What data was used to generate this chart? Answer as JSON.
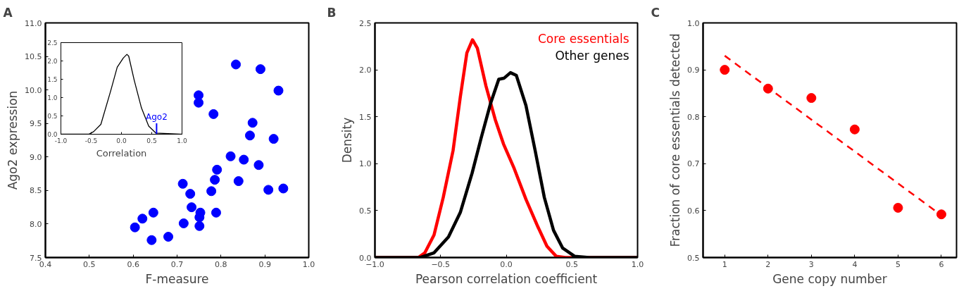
{
  "chart_data": [
    {
      "type": "scatter",
      "title": "A",
      "xlabel": "F-measure",
      "ylabel": "Ago2 expression",
      "marker": "circle",
      "xlim": [
        0.4,
        1.0
      ],
      "xticks": [
        0.4,
        0.5,
        0.6,
        0.7,
        0.8,
        0.9,
        {
          "value": 1.0,
          "label": "1.0"
        }
      ],
      "ylim": [
        7.5,
        11.0
      ],
      "yticks": [
        7.5,
        {
          "value": 8.0,
          "label": "8.0"
        },
        8.5,
        {
          "value": 9.0,
          "label": "9.0"
        },
        9.5,
        {
          "value": 10.0,
          "label": "10.0"
        },
        10.5,
        {
          "value": 11.0,
          "label": "11.0"
        }
      ],
      "x": [
        0.834,
        0.89,
        0.931,
        0.749,
        0.749,
        0.783,
        0.872,
        0.866,
        0.92,
        0.822,
        0.852,
        0.886,
        0.791,
        0.786,
        0.84,
        0.713,
        0.778,
        0.908,
        0.942,
        0.73,
        0.733,
        0.753,
        0.789,
        0.751,
        0.646,
        0.621,
        0.715,
        0.751,
        0.604,
        0.68,
        0.642
      ],
      "series": [
        {
          "color": "#0000ff",
          "values": [
            10.38,
            10.31,
            9.99,
            9.92,
            9.81,
            9.64,
            9.51,
            9.32,
            9.27,
            9.01,
            8.96,
            8.88,
            8.81,
            8.66,
            8.64,
            8.6,
            8.49,
            8.51,
            8.53,
            8.45,
            8.25,
            8.17,
            8.17,
            8.1,
            8.17,
            8.08,
            8.01,
            7.97,
            7.95,
            7.81,
            7.76
          ]
        }
      ]
    },
    {
      "type": "line",
      "xlabel": "Correlation",
      "xlim": [
        -1.0,
        1.0
      ],
      "xticks": [
        {
          "value": -1.0,
          "label": "-1.0"
        },
        -0.5,
        {
          "value": 0.0,
          "label": "0.0"
        },
        0.5,
        {
          "value": 1.0,
          "label": "1.0"
        }
      ],
      "ylim": [
        0.0,
        2.5
      ],
      "yticks": [
        {
          "value": 0.0,
          "label": "0.0"
        },
        0.5,
        {
          "value": 1.0,
          "label": "1.0"
        },
        1.5,
        {
          "value": 2.0,
          "label": "2.0"
        },
        2.5
      ],
      "x": [
        -1.0,
        -0.54,
        -0.46,
        -0.34,
        -0.18,
        -0.07,
        0.03,
        0.09,
        0.12,
        0.21,
        0.33,
        0.45,
        0.57,
        1.0
      ],
      "series": [
        {
          "color": "#000000",
          "values": [
            0.0,
            0.0,
            0.07,
            0.27,
            1.17,
            1.83,
            2.08,
            2.18,
            2.13,
            1.48,
            0.72,
            0.22,
            0.03,
            0.0
          ]
        }
      ],
      "ref_lines": [
        {
          "axis": "x",
          "value": 0.58,
          "label": "Ago2",
          "color": "#0000ff"
        }
      ]
    },
    {
      "type": "line",
      "title": "B",
      "xlabel": "Pearson correlation coefficient",
      "ylabel": "Density",
      "legend": "top right",
      "xlim": [
        -1.0,
        1.0
      ],
      "xticks": [
        {
          "value": -1.0,
          "label": "−1.0"
        },
        {
          "value": -0.5,
          "label": "−0.5"
        },
        {
          "value": 0.0,
          "label": "0.0"
        },
        0.5,
        {
          "value": 1.0,
          "label": "1.0"
        }
      ],
      "ylim": [
        0.0,
        2.5
      ],
      "yticks": [
        {
          "value": 0.0,
          "label": "0.0"
        },
        0.5,
        {
          "value": 1.0,
          "label": "1.0"
        },
        1.5,
        {
          "value": 2.0,
          "label": "2.0"
        },
        2.5
      ],
      "series": [
        {
          "name": "Core essentials",
          "color": "#ff0000",
          "x": [
            -1.0,
            -0.7,
            -0.67,
            -0.62,
            -0.55,
            -0.48,
            -0.405,
            -0.35,
            -0.3,
            -0.257,
            -0.22,
            -0.155,
            -0.084,
            -0.021,
            0.06,
            0.15,
            0.24,
            0.31,
            0.38,
            0.45,
            1.0
          ],
          "values": [
            0.0,
            0.0,
            0.0,
            0.05,
            0.24,
            0.64,
            1.14,
            1.71,
            2.18,
            2.32,
            2.23,
            1.83,
            1.47,
            1.21,
            0.95,
            0.62,
            0.33,
            0.12,
            0.014,
            0.0,
            0.0
          ]
        },
        {
          "name": "Other genes",
          "color": "#000000",
          "x": [
            -1.0,
            -0.655,
            -0.55,
            -0.44,
            -0.35,
            -0.26,
            -0.19,
            -0.12,
            -0.057,
            -0.018,
            0.032,
            0.077,
            0.15,
            0.22,
            0.29,
            0.36,
            0.43,
            0.52,
            0.63,
            1.0
          ],
          "values": [
            0.0,
            0.0,
            0.05,
            0.22,
            0.48,
            0.9,
            1.28,
            1.64,
            1.9,
            1.91,
            1.97,
            1.94,
            1.62,
            1.14,
            0.64,
            0.29,
            0.1,
            0.014,
            0.0,
            0.0
          ]
        }
      ]
    },
    {
      "type": "scatter",
      "title": "C",
      "xlabel": "Gene copy number",
      "ylabel": "Fraction of core essentials detected",
      "xlim": [
        0.5,
        6.35
      ],
      "xticks": [
        1,
        2,
        3,
        4,
        5,
        6
      ],
      "ylim": [
        0.5,
        1.0
      ],
      "yticks": [
        0.5,
        0.6,
        0.7,
        0.8,
        0.9,
        {
          "value": 1.0,
          "label": "1.0"
        }
      ],
      "x": [
        1,
        2,
        3,
        4,
        5,
        6
      ],
      "series": [
        {
          "color": "#ff0000",
          "marker": "circle",
          "values": [
            0.9,
            0.86,
            0.84,
            0.773,
            0.606,
            0.592
          ]
        },
        {
          "type": "line",
          "line_style": "dashed",
          "color": "#ff0000",
          "x": [
            1,
            6
          ],
          "values": [
            0.93,
            0.59
          ]
        }
      ]
    }
  ]
}
